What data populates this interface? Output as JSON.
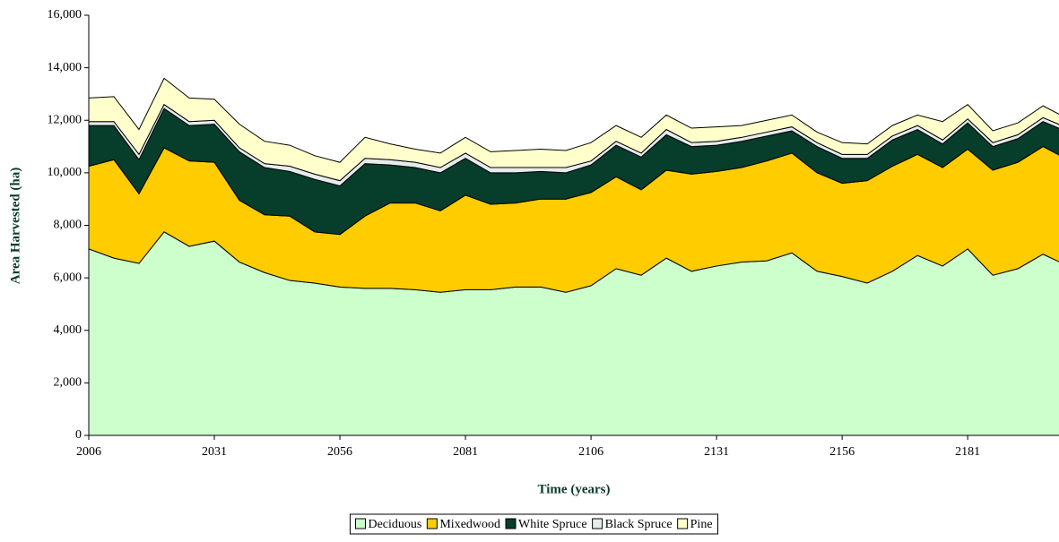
{
  "chart_data": {
    "type": "stacked_area",
    "x_label": "Time (years)",
    "y_label": "Area Harvested (ha)",
    "x": [
      2006,
      2011,
      2016,
      2021,
      2026,
      2031,
      2036,
      2041,
      2046,
      2051,
      2056,
      2061,
      2066,
      2071,
      2076,
      2081,
      2086,
      2091,
      2096,
      2101,
      2106,
      2111,
      2116,
      2121,
      2126,
      2131,
      2136,
      2141,
      2146,
      2151,
      2156,
      2161,
      2166,
      2171,
      2176,
      2181,
      2186,
      2191,
      2196,
      2201
    ],
    "series": [
      {
        "name": "Deciduous",
        "color": "#ccffcc",
        "values": [
          7100,
          6750,
          6550,
          7750,
          7200,
          7400,
          6600,
          6200,
          5900,
          5800,
          5650,
          5600,
          5600,
          5550,
          5450,
          5550,
          5550,
          5650,
          5650,
          5450,
          5700,
          6350,
          6100,
          6750,
          6250,
          6450,
          6600,
          6650,
          6950,
          6250,
          6050,
          5800,
          6250,
          6850,
          6450,
          7100,
          6100,
          6350,
          6900,
          6450
        ]
      },
      {
        "name": "Mixedwood",
        "color": "#ffcc00",
        "values": [
          3150,
          3750,
          2650,
          3200,
          3250,
          3000,
          2350,
          2200,
          2450,
          1950,
          2000,
          2750,
          3250,
          3300,
          3100,
          3600,
          3250,
          3200,
          3350,
          3550,
          3550,
          3500,
          3250,
          3350,
          3700,
          3600,
          3600,
          3800,
          3800,
          3750,
          3550,
          3900,
          4000,
          3850,
          3750,
          3800,
          4000,
          4050,
          4100,
          4050
        ]
      },
      {
        "name": "White Spruce",
        "color": "#063d2b",
        "values": [
          1550,
          1300,
          1300,
          1500,
          1350,
          1450,
          1850,
          1800,
          1700,
          2000,
          1850,
          2000,
          1450,
          1350,
          1450,
          1400,
          1200,
          1150,
          1050,
          1000,
          1050,
          1200,
          1250,
          1350,
          1050,
          1000,
          1000,
          950,
          850,
          1000,
          950,
          850,
          1000,
          950,
          900,
          1000,
          900,
          900,
          950,
          1050
        ]
      },
      {
        "name": "Black Spruce",
        "color": "#e6ecee",
        "values": [
          150,
          150,
          200,
          150,
          150,
          150,
          150,
          150,
          200,
          200,
          200,
          200,
          200,
          200,
          200,
          200,
          200,
          200,
          150,
          200,
          150,
          150,
          150,
          200,
          150,
          150,
          150,
          150,
          150,
          150,
          150,
          150,
          150,
          150,
          150,
          150,
          150,
          150,
          150,
          150
        ]
      },
      {
        "name": "Pine",
        "color": "#ffffcc",
        "values": [
          900,
          950,
          950,
          1000,
          900,
          800,
          900,
          850,
          800,
          700,
          700,
          800,
          600,
          500,
          550,
          600,
          600,
          650,
          700,
          650,
          700,
          600,
          600,
          550,
          550,
          550,
          450,
          450,
          450,
          400,
          450,
          400,
          400,
          400,
          700,
          550,
          450,
          450,
          450,
          350
        ]
      }
    ],
    "xlim": [
      2006,
      2199
    ],
    "xticks": [
      2006,
      2031,
      2056,
      2081,
      2106,
      2131,
      2156,
      2181
    ],
    "ylim": [
      0,
      16000
    ],
    "yticks": [
      0,
      {
        "value": 2000,
        "label": "2,000"
      },
      {
        "value": 4000,
        "label": "4,000"
      },
      {
        "value": 6000,
        "label": "6,000"
      },
      {
        "value": 8000,
        "label": "8,000"
      },
      {
        "value": 10000,
        "label": "10,000"
      },
      {
        "value": 12000,
        "label": "12,000"
      },
      {
        "value": 14000,
        "label": "14,000"
      },
      {
        "value": 16000,
        "label": "16,000"
      }
    ],
    "legend": "bottom"
  }
}
